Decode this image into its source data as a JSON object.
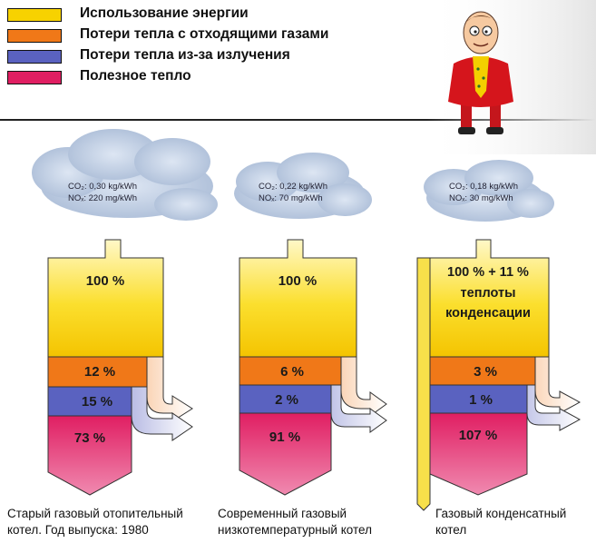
{
  "legend": [
    {
      "label": "Использование энергии",
      "color": "#f7d200"
    },
    {
      "label": "Потери тепла с отходящими газами",
      "color": "#f07818"
    },
    {
      "label": "Потери тепла из-за излучения",
      "color": "#5a62c0"
    },
    {
      "label": "Полезное тепло",
      "color": "#e01e62"
    }
  ],
  "boilers": [
    {
      "co2_label": "CO₂: 0,30 kg/kWh",
      "nox_label": "NOₓ: 220 mg/kWh",
      "energy_use": "100 %",
      "flue_gas_loss": "12 %",
      "radiation_loss": "15 %",
      "useful_heat": "73 %",
      "caption_line1": "Старый газовый отопительный",
      "caption_line2": "котел. Год выпуска: 1980"
    },
    {
      "co2_label": "CO₂: 0,22 kg/kWh",
      "nox_label": "NOₓ: 70 mg/kWh",
      "energy_use": "100 %",
      "flue_gas_loss": "6 %",
      "radiation_loss": "2 %",
      "useful_heat": "91 %",
      "caption_line1": "Современный газовый",
      "caption_line2": "низкотемпературный котел"
    },
    {
      "co2_label": "CO₂: 0,18 kg/kWh",
      "nox_label": "NOₓ: 30 mg/kWh",
      "energy_use_line1": "100 % + 11 %",
      "energy_use_line2": "теплоты",
      "energy_use_line3": "конденсации",
      "flue_gas_loss": "3 %",
      "radiation_loss": "1 %",
      "useful_heat": "107 %",
      "caption_line1": "Газовый конденсатный",
      "caption_line2": "котел"
    }
  ]
}
